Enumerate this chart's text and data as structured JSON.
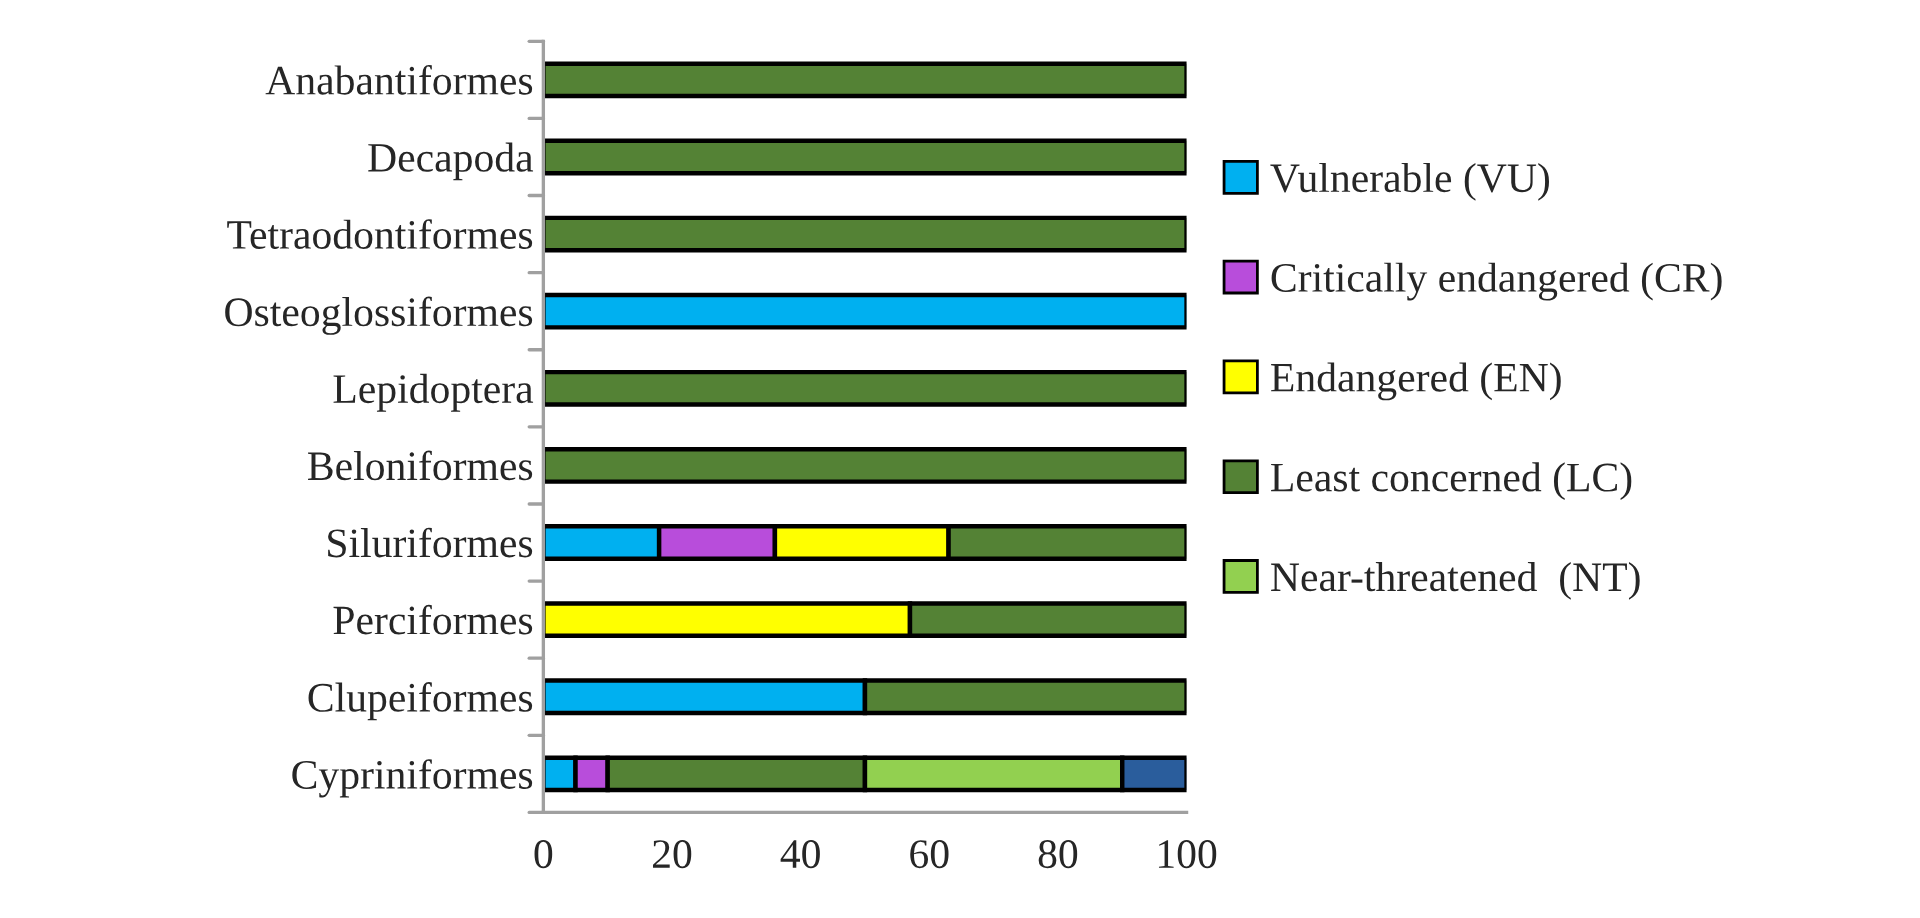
{
  "chart_data": {
    "type": "bar",
    "orientation": "horizontal",
    "stacked": true,
    "categories": [
      "Anabantiformes",
      "Decapoda",
      "Tetraodontiformes",
      "Osteoglossiformes",
      "Lepidoptera",
      "Beloniformes",
      "Siluriformes",
      "Perciformes",
      "Clupeiformes",
      "Cypriniformes"
    ],
    "series": [
      {
        "name": "Vulnerable (VU)",
        "color": "#00b0f0",
        "values": [
          null,
          null,
          null,
          100,
          null,
          null,
          18,
          null,
          50,
          5
        ]
      },
      {
        "name": "Critically endangered (CR)",
        "color": "#b84ddb",
        "values": [
          null,
          null,
          null,
          null,
          null,
          null,
          18,
          null,
          null,
          5
        ]
      },
      {
        "name": "Endangered (EN)",
        "color": "#ffff00",
        "values": [
          null,
          null,
          null,
          null,
          null,
          null,
          27,
          57,
          null,
          null
        ]
      },
      {
        "name": "Least concerned (LC)",
        "color": "#548235",
        "values": [
          100,
          100,
          100,
          null,
          100,
          100,
          37,
          43,
          50,
          40
        ]
      },
      {
        "name": "Near-threatened  (NT)",
        "color": "#92d050",
        "values": [
          null,
          null,
          null,
          null,
          null,
          null,
          null,
          null,
          null,
          40
        ]
      },
      {
        "color": "#2a5d9c",
        "values": [
          null,
          null,
          null,
          null,
          null,
          null,
          null,
          null,
          null,
          10
        ]
      }
    ],
    "xlim": [
      0,
      100
    ],
    "xticks": [
      0,
      20,
      40,
      60,
      80,
      100
    ],
    "grid": false,
    "legend": "right"
  }
}
